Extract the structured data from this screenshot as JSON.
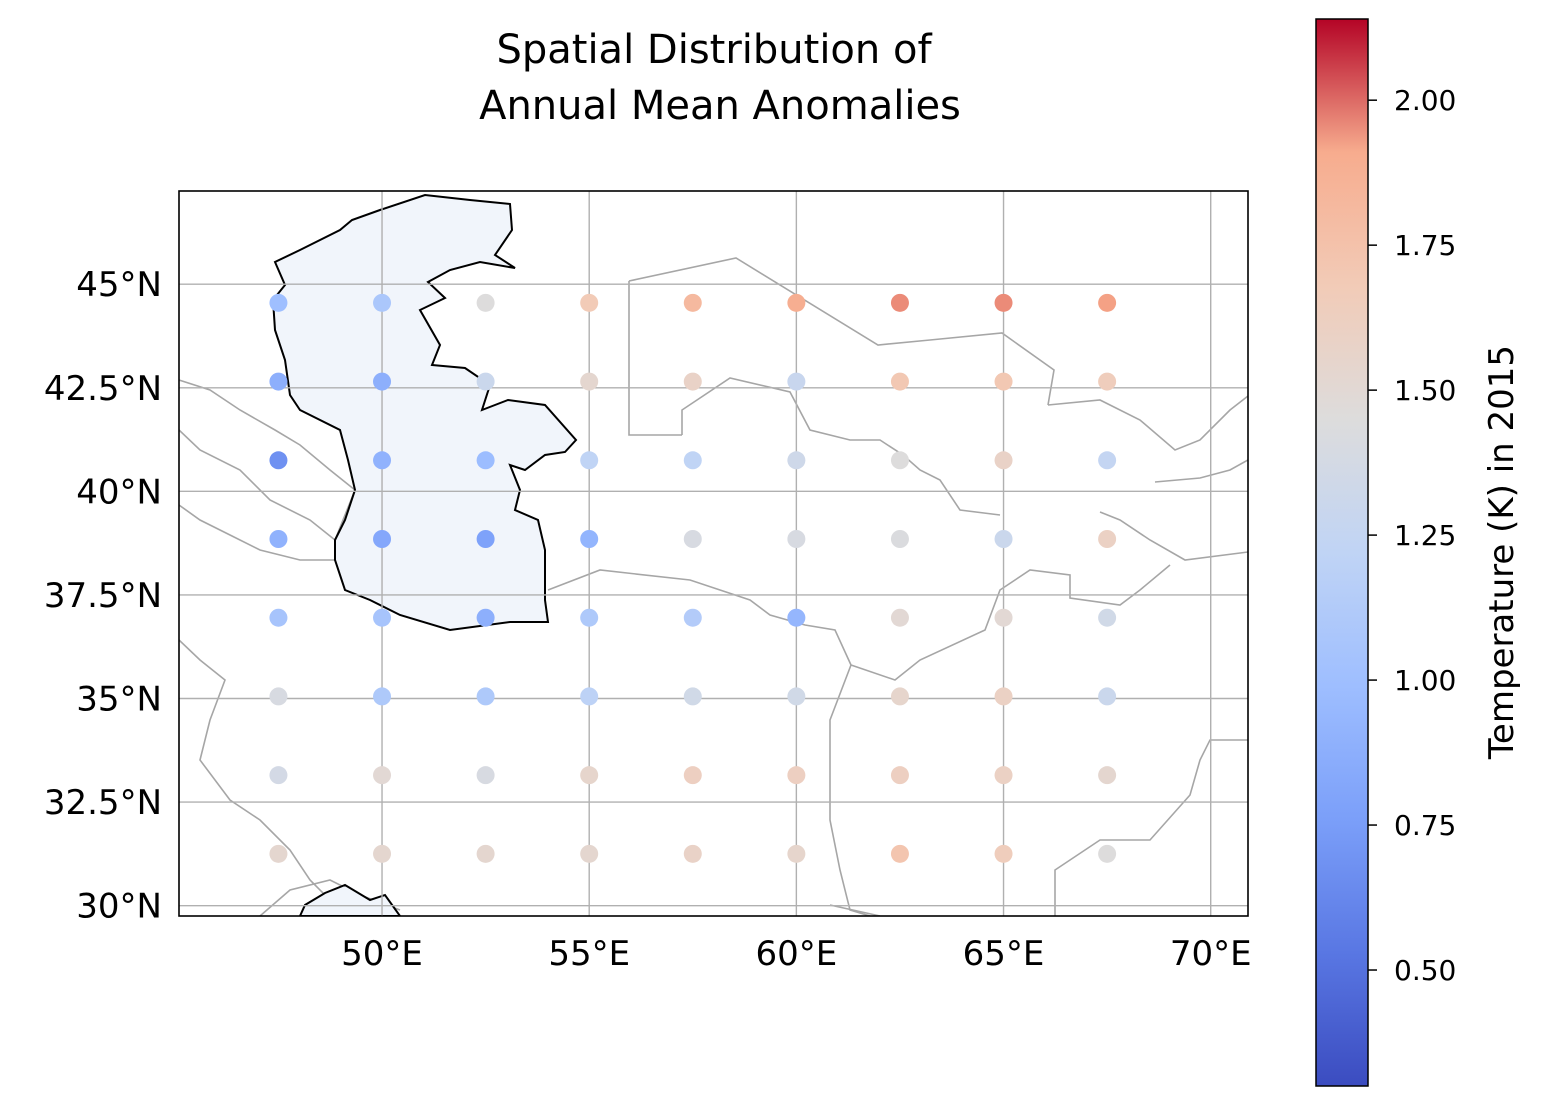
{
  "chart_data": {
    "type": "scatter",
    "title": "Spatial Distribution of\nAnnual Mean Anomalies",
    "title_lines": [
      "Spatial Distribution of",
      "Annual Mean Anomalies"
    ],
    "projection": "PlateCarree",
    "xlim": [
      45.1,
      70.9
    ],
    "ylim": [
      29.75,
      47.25
    ],
    "xticks": [
      50,
      55,
      60,
      65,
      70
    ],
    "xtick_labels": [
      "50°E",
      "55°E",
      "60°E",
      "65°E",
      "70°E"
    ],
    "yticks": [
      30,
      32.5,
      35,
      37.5,
      40,
      42.5,
      45
    ],
    "ytick_labels": [
      "30°N",
      "32.5°N",
      "35°N",
      "37.5°N",
      "40°N",
      "42.5°N",
      "45°N"
    ],
    "grid": true,
    "colormap": "coolwarm",
    "colorbar": {
      "label": "Temperature (K) in 2015",
      "vmin": 0.3,
      "vmax": 2.14,
      "ticks": [
        0.5,
        0.75,
        1.0,
        1.25,
        1.5,
        1.75,
        2.0
      ],
      "tick_labels": [
        "0.50",
        "0.75",
        "1.00",
        "1.25",
        "1.50",
        "1.75",
        "2.00"
      ]
    },
    "lons": [
      47.5,
      50.0,
      52.5,
      55.0,
      57.5,
      60.0,
      62.5,
      65.0,
      67.5
    ],
    "lats": [
      44.55,
      42.65,
      40.75,
      38.85,
      36.95,
      35.05,
      33.15,
      31.25
    ],
    "values": [
      [
        1.0,
        1.08,
        1.45,
        1.68,
        1.8,
        1.87,
        1.95,
        1.95,
        1.92
      ],
      [
        0.88,
        0.88,
        1.3,
        1.53,
        1.58,
        1.28,
        1.7,
        1.7,
        1.65
      ],
      [
        0.68,
        0.9,
        0.98,
        1.22,
        1.22,
        1.33,
        1.45,
        1.58,
        1.25
      ],
      [
        0.9,
        0.82,
        0.78,
        0.92,
        1.4,
        1.4,
        1.43,
        1.3,
        1.6
      ],
      [
        1.05,
        1.05,
        0.88,
        1.1,
        1.13,
        0.93,
        1.5,
        1.5,
        1.35
      ],
      [
        1.4,
        1.1,
        1.1,
        1.2,
        1.35,
        1.35,
        1.55,
        1.6,
        1.3
      ],
      [
        1.37,
        1.5,
        1.4,
        1.55,
        1.62,
        1.62,
        1.62,
        1.6,
        1.53
      ],
      [
        1.53,
        1.53,
        1.53,
        1.53,
        1.58,
        1.55,
        1.72,
        1.65,
        1.45
      ]
    ]
  }
}
